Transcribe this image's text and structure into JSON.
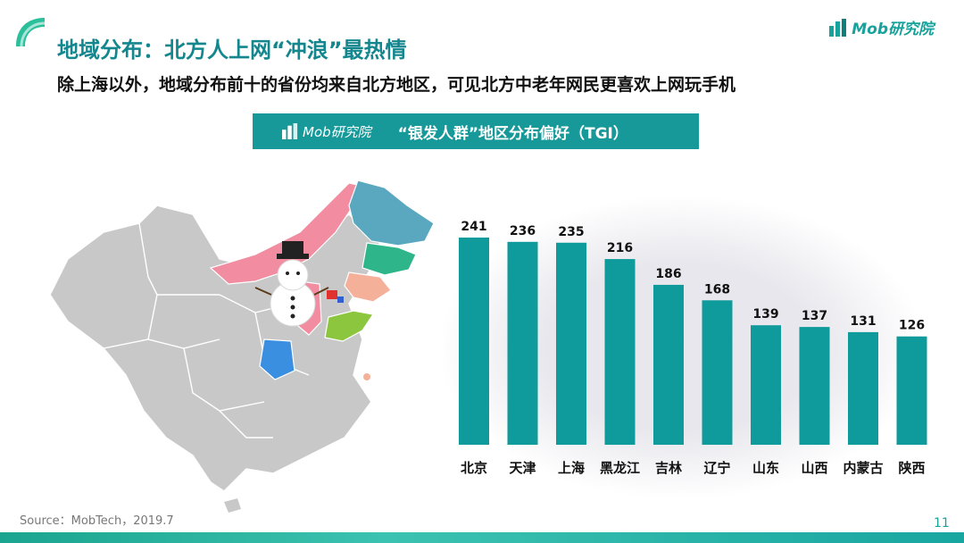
{
  "header": {
    "title": "地域分布：北方人上网“冲浪”最热情",
    "subtitle": "除上海以外，地域分布前十的省份均来自北方地区，可见北方中老年网民更喜欢上网玩手机"
  },
  "logo": {
    "text": "Mob研究院",
    "icon": "building-bars-icon"
  },
  "banner": {
    "logo_text": "Mob研究院",
    "title": "“银发人群”地区分布偏好（TGI）"
  },
  "footer": {
    "source": "Source：MobTech，2019.7",
    "page_number": "11"
  },
  "colors": {
    "accent": "#17999a",
    "bar": "#0f9a9b",
    "title": "#14878e",
    "map_base": "#c8c8c8",
    "map_pink": "#f28ca0",
    "map_blue": "#5aa8c0",
    "map_green": "#2fb58a",
    "map_peach": "#f5b09a",
    "map_lime": "#8cc63f",
    "map_azure": "#3b8fe0"
  },
  "chart_data": {
    "type": "bar",
    "categories": [
      "北京",
      "天津",
      "上海",
      "黑龙江",
      "吉林",
      "辽宁",
      "山东",
      "山西",
      "内蒙古",
      "陕西"
    ],
    "values": [
      241,
      236,
      235,
      216,
      186,
      168,
      139,
      137,
      131,
      126
    ],
    "ylim": [
      0,
      241
    ],
    "grid": false,
    "data_labels": true
  }
}
